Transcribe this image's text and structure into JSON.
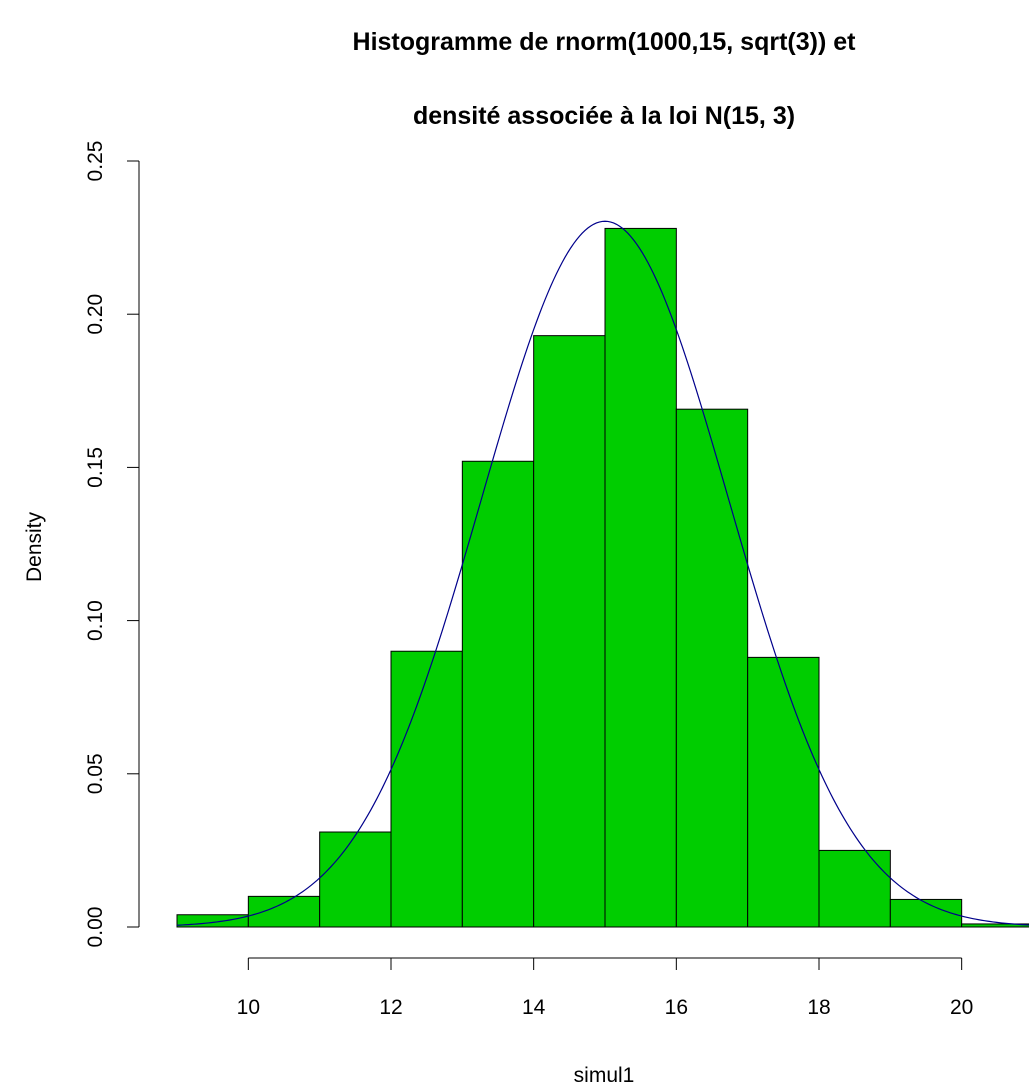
{
  "chart_data": {
    "type": "bar",
    "title_lines": [
      "Histogramme de rnorm(1000,15, sqrt(3)) et",
      "densité associée à la loi N(15, 3)"
    ],
    "xlabel": "simul1",
    "ylabel": "Density",
    "xlim": [
      9,
      21
    ],
    "ylim": [
      0,
      0.25
    ],
    "x_ticks": [
      10,
      12,
      14,
      16,
      18,
      20
    ],
    "x_tick_labels": [
      "10",
      "12",
      "14",
      "16",
      "18",
      "20"
    ],
    "y_ticks": [
      0,
      0.05,
      0.1,
      0.15,
      0.2,
      0.25
    ],
    "y_tick_labels": [
      "0.00",
      "0.05",
      "0.10",
      "0.15",
      "0.20",
      "0.25"
    ],
    "bins": [
      {
        "x0": 9,
        "x1": 10,
        "density": 0.004
      },
      {
        "x0": 10,
        "x1": 11,
        "density": 0.01
      },
      {
        "x0": 11,
        "x1": 12,
        "density": 0.031
      },
      {
        "x0": 12,
        "x1": 13,
        "density": 0.09
      },
      {
        "x0": 13,
        "x1": 14,
        "density": 0.152
      },
      {
        "x0": 14,
        "x1": 15,
        "density": 0.193
      },
      {
        "x0": 15,
        "x1": 16,
        "density": 0.228
      },
      {
        "x0": 16,
        "x1": 17,
        "density": 0.169
      },
      {
        "x0": 17,
        "x1": 18,
        "density": 0.088
      },
      {
        "x0": 18,
        "x1": 19,
        "density": 0.025
      },
      {
        "x0": 19,
        "x1": 20,
        "density": 0.009
      },
      {
        "x0": 20,
        "x1": 21,
        "density": 0.001
      }
    ],
    "density_curve": {
      "mean": 15,
      "variance": 3,
      "range": [
        9,
        21
      ]
    },
    "colors": {
      "bar_fill": "#00CD00",
      "bar_border": "#000000",
      "curve": "#00008B",
      "axis": "#000000"
    },
    "grid": false
  }
}
